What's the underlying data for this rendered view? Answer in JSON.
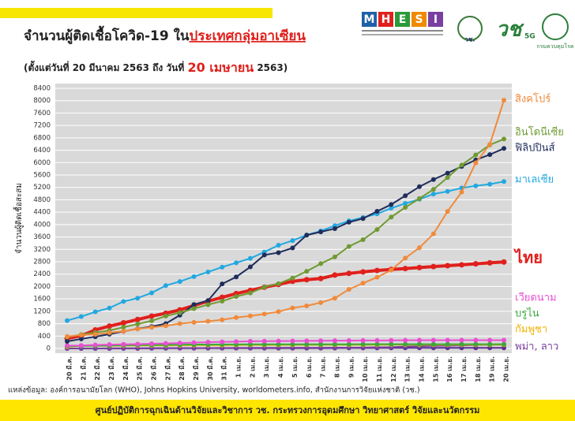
{
  "header": {
    "logo_letters": [
      "M",
      "H",
      "E",
      "S",
      "I"
    ],
    "nrct_logo": "วช.",
    "g5_logo": "5G",
    "ddc_logo": "กรมควบคุมโรค"
  },
  "chart_data": {
    "type": "line",
    "title": "จำนวนผู้ติดเชื้อโควิด-19 ใน",
    "title_highlight": "ประเทศกลุ่มอาเซียน",
    "subtitle_start": "(ตั้งแต่วันที่ 20 มีนาคม 2563 ถึง วันที่ ",
    "subtitle_highlight": "20 เมษายน",
    "subtitle_end": " 2563)",
    "y_label": "จำนวนผู้ติดเชื้อสะสม",
    "categories": [
      "20 มี.ค.",
      "21 มี.ค.",
      "22 มี.ค.",
      "23 มี.ค.",
      "24 มี.ค.",
      "25 มี.ค.",
      "26 มี.ค.",
      "27 มี.ค.",
      "28 มี.ค.",
      "29 มี.ค.",
      "30 มี.ค.",
      "31 มี.ค.",
      "1 เม.ย.",
      "2 เม.ย.",
      "3 เม.ย.",
      "4 เม.ย.",
      "5 เม.ย.",
      "6 เม.ย.",
      "7 เม.ย.",
      "8 เม.ย.",
      "9 เม.ย.",
      "10 เม.ย.",
      "11 เม.ย.",
      "12 เม.ย.",
      "13 เม.ย.",
      "14 เม.ย.",
      "15 เม.ย.",
      "16 เม.ย.",
      "17 เม.ย.",
      "18 เม.ย.",
      "19 เม.ย.",
      "20 เม.ย."
    ],
    "ylim": [
      0,
      8400
    ],
    "yticks": [
      0,
      400,
      800,
      1200,
      1600,
      2000,
      2400,
      2800,
      3200,
      3600,
      4000,
      4400,
      4800,
      5200,
      5600,
      6000,
      6400,
      6800,
      7200,
      7600,
      8000,
      8400
    ],
    "grid": true,
    "series": [
      {
        "name": "สิงคโปร์",
        "color": "#f08a3c",
        "values": [
          385,
          432,
          455,
          509,
          558,
          631,
          683,
          732,
          802,
          844,
          879,
          926,
          1000,
          1049,
          1114,
          1189,
          1309,
          1375,
          1481,
          1623,
          1910,
          2108,
          2299,
          2532,
          2918,
          3252,
          3699,
          4427,
          5050,
          5992,
          6588,
          8014
        ]
      },
      {
        "name": "อินโดนีเซีย",
        "color": "#6f9a32",
        "values": [
          369,
          450,
          514,
          579,
          686,
          790,
          893,
          1046,
          1155,
          1285,
          1414,
          1528,
          1677,
          1790,
          1986,
          2092,
          2273,
          2491,
          2738,
          2956,
          3293,
          3512,
          3842,
          4241,
          4557,
          4839,
          5136,
          5516,
          5923,
          6248,
          6575,
          6760
        ]
      },
      {
        "name": "ฟิลิปปินส์",
        "color": "#1f2d5c",
        "values": [
          230,
          307,
          380,
          462,
          552,
          636,
          707,
          803,
          1075,
          1418,
          1546,
          2084,
          2311,
          2633,
          3018,
          3094,
          3246,
          3660,
          3764,
          3870,
          4076,
          4195,
          4428,
          4648,
          4932,
          5223,
          5453,
          5660,
          5878,
          6087,
          6259,
          6459
        ]
      },
      {
        "name": "มาเลเซีย",
        "color": "#22a8e0",
        "values": [
          900,
          1030,
          1183,
          1306,
          1518,
          1624,
          1796,
          2031,
          2161,
          2320,
          2470,
          2626,
          2766,
          2908,
          3116,
          3333,
          3483,
          3662,
          3793,
          3963,
          4119,
          4228,
          4346,
          4530,
          4683,
          4817,
          4987,
          5072,
          5182,
          5251,
          5305,
          5389
        ]
      },
      {
        "name": "ไทย",
        "color": "#e0201c",
        "values": [
          322,
          411,
          599,
          721,
          827,
          934,
          1045,
          1136,
          1245,
          1388,
          1524,
          1651,
          1771,
          1875,
          1978,
          2067,
          2169,
          2220,
          2258,
          2369,
          2423,
          2473,
          2518,
          2551,
          2579,
          2613,
          2643,
          2672,
          2700,
          2733,
          2765,
          2792
        ]
      },
      {
        "name": "เวียดนาม",
        "color": "#e94fd2",
        "values": [
          91,
          94,
          113,
          123,
          134,
          141,
          153,
          163,
          174,
          188,
          203,
          212,
          218,
          233,
          237,
          240,
          241,
          245,
          249,
          251,
          255,
          257,
          258,
          262,
          265,
          266,
          267,
          268,
          268,
          268,
          268,
          268
        ]
      },
      {
        "name": "บรูไน",
        "color": "#3aa83a",
        "values": [
          73,
          83,
          88,
          91,
          104,
          109,
          114,
          115,
          120,
          126,
          127,
          129,
          131,
          133,
          135,
          135,
          135,
          135,
          135,
          135,
          135,
          136,
          136,
          136,
          136,
          136,
          136,
          137,
          138,
          138,
          138,
          138
        ]
      },
      {
        "name": "กัมพูชา",
        "color": "#f0b400",
        "values": [
          53,
          84,
          87,
          87,
          91,
          96,
          98,
          99,
          103,
          107,
          109,
          109,
          110,
          114,
          114,
          115,
          115,
          117,
          117,
          117,
          118,
          119,
          119,
          120,
          120,
          122,
          122,
          122,
          122,
          122,
          122,
          122
        ]
      },
      {
        "name": "พม่า, ลาว",
        "color": "#7a3fa0",
        "values": [
          0,
          0,
          0,
          2,
          3,
          3,
          5,
          8,
          8,
          10,
          14,
          15,
          15,
          20,
          20,
          21,
          21,
          22,
          22,
          27,
          27,
          28,
          39,
          41,
          62,
          74,
          85,
          88,
          98,
          111,
          119,
          121
        ]
      },
      {
        "color": "#5b2f8f",
        "values": [
          0,
          0,
          0,
          0,
          2,
          3,
          6,
          6,
          8,
          8,
          9,
          10,
          10,
          10,
          10,
          10,
          10,
          11,
          11,
          12,
          16,
          16,
          16,
          19,
          19,
          19,
          19,
          19,
          19,
          19,
          19,
          19
        ]
      }
    ],
    "source": "แหล่งข้อมูล: องค์การอนามัยโลก (WHO), Johns Hopkins University, worldometers.info, สำนักงานการวิจัยแห่งชาติ (วช.)",
    "footer": "ศูนย์ปฏิบัติการฉุกเฉินด้านวิจัยและวิชาการ    วช.    กระทรวงการอุดมศึกษา วิทยาศาสตร์ วิจัยและนวัตกรรม"
  }
}
